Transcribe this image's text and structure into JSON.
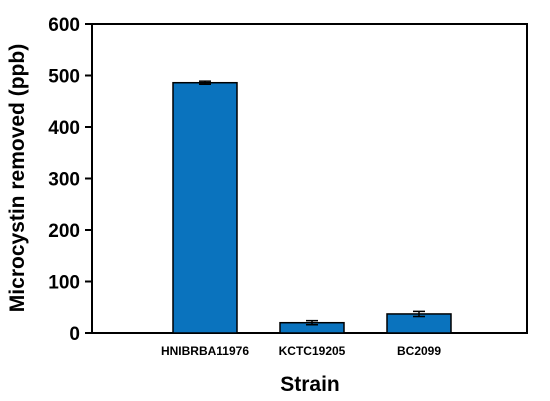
{
  "chart_data": {
    "type": "bar",
    "title": "",
    "xlabel": "Strain",
    "ylabel": "Microcystin removed (ppb)",
    "categories": [
      "HNIBRBA11976",
      "KCTC19205",
      "BC2099"
    ],
    "values": [
      486,
      20,
      37
    ],
    "error": [
      3,
      4,
      5
    ],
    "ylim": [
      0,
      600
    ],
    "yticks": [
      0,
      100,
      200,
      300,
      400,
      500,
      600
    ],
    "legend": "none",
    "grid": false,
    "colors": {
      "bar_fill": "#0a73be",
      "bar_stroke": "#000000",
      "axis": "#000000"
    }
  }
}
